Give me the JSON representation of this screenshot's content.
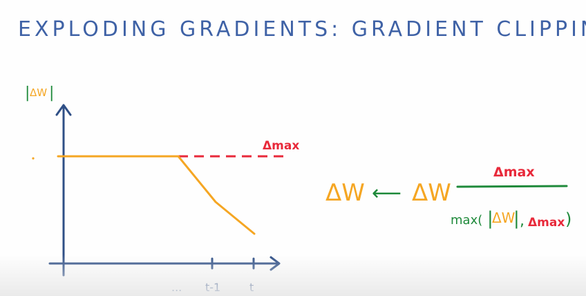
{
  "title": "EXPLODING GRADIENTS:  GRADIENT CLIPPING",
  "graph": {
    "y_axis_label": {
      "bar_left": "|",
      "symbol": "ΔW",
      "bar_right": "|"
    },
    "threshold_label": "Δmax",
    "x_ticks": [
      "...",
      "t-1",
      "t"
    ]
  },
  "formula": {
    "lhs": "ΔW",
    "arrow": "⟵",
    "rhs": "ΔW",
    "numerator": "Δmax",
    "denominator": {
      "func": "max(",
      "abs_bar_left": "|",
      "abs_symbol": "ΔW",
      "abs_bar_right": "|",
      "sep": ",",
      "delta_max": "Δmax",
      "close": ")"
    }
  },
  "colors": {
    "title": "#3f62a6",
    "axis": "#2f4f86",
    "curve": "#f5a623",
    "threshold": "#e8293a",
    "green": "#1f8a3b"
  }
}
